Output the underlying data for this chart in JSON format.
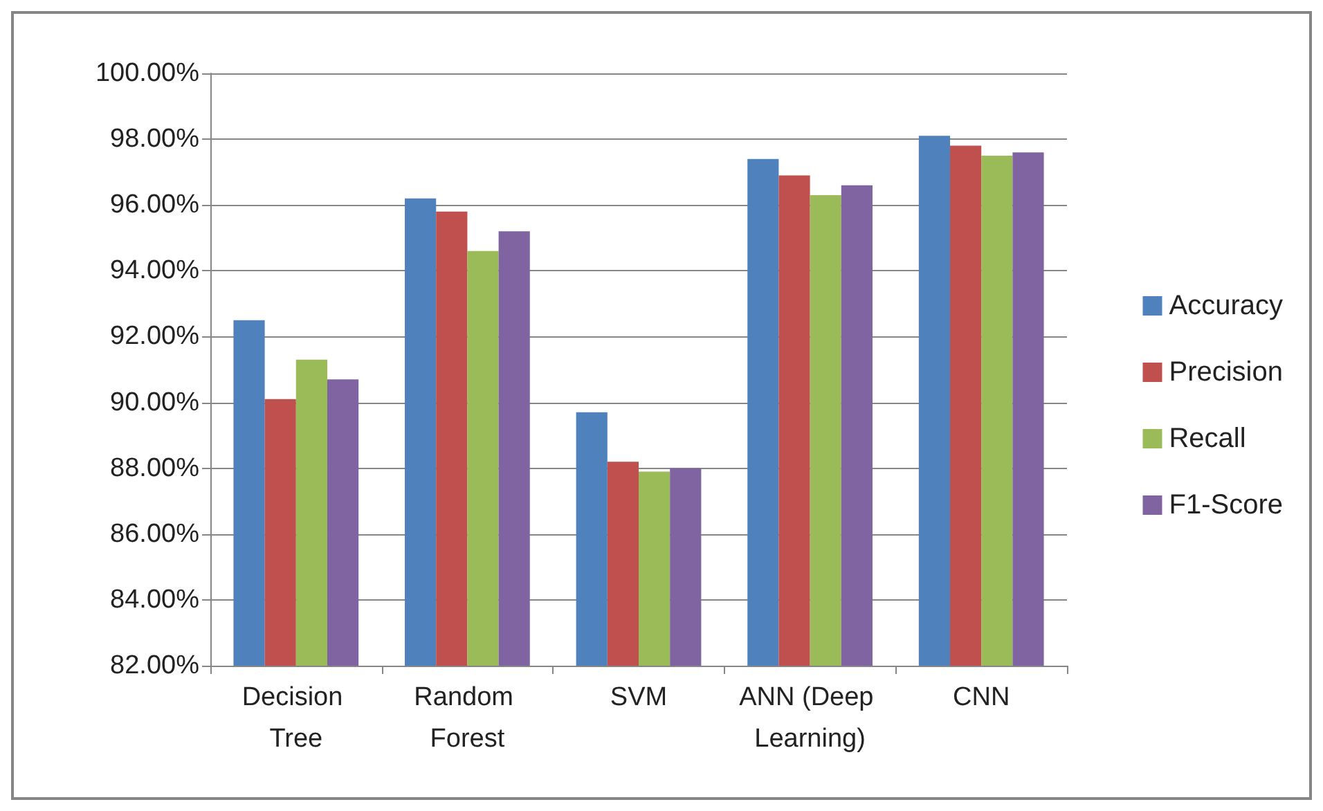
{
  "chart_data": {
    "type": "bar",
    "categories": [
      "Decision Tree",
      "Random Forest",
      "SVM",
      "ANN (Deep Learning)",
      "CNN"
    ],
    "series": [
      {
        "name": "Accuracy",
        "color": "#4f81bd",
        "values": [
          92.5,
          96.2,
          89.7,
          97.4,
          98.1
        ]
      },
      {
        "name": "Precision",
        "color": "#c0504d",
        "values": [
          90.1,
          95.8,
          88.2,
          96.9,
          97.8
        ]
      },
      {
        "name": "Recall",
        "color": "#9bbb59",
        "values": [
          91.3,
          94.6,
          87.9,
          96.3,
          97.5
        ]
      },
      {
        "name": "F1-Score",
        "color": "#8064a2",
        "values": [
          90.7,
          95.2,
          88.0,
          96.6,
          97.6
        ]
      }
    ],
    "ylim": [
      82,
      100
    ],
    "yticks": [
      {
        "value": 82,
        "label": "82.00%"
      },
      {
        "value": 84,
        "label": "84.00%"
      },
      {
        "value": 86,
        "label": "86.00%"
      },
      {
        "value": 88,
        "label": "88.00%"
      },
      {
        "value": 90,
        "label": "90.00%"
      },
      {
        "value": 92,
        "label": "92.00%"
      },
      {
        "value": 94,
        "label": "94.00%"
      },
      {
        "value": 96,
        "label": "96.00%"
      },
      {
        "value": 98,
        "label": "98.00%"
      },
      {
        "value": 100,
        "label": "100.00%"
      }
    ],
    "grid": "y",
    "legend": "right"
  }
}
